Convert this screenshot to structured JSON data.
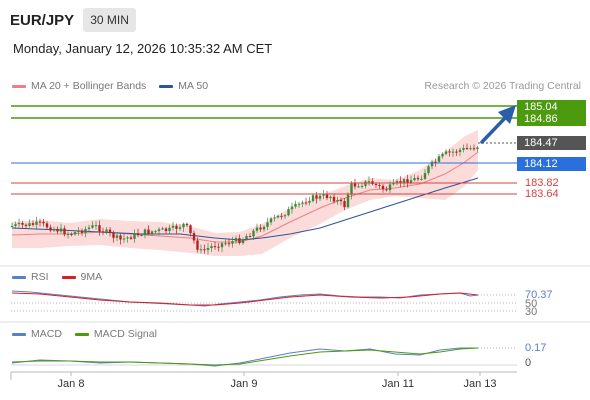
{
  "header": {
    "symbol": "EUR/JPY",
    "timeframe": "30 MIN",
    "datetime": "Monday, January 12, 2026 10:35:32 AM CET"
  },
  "legend": {
    "ma20": "MA 20 + Bollinger Bands",
    "ma50": "MA 50",
    "credit": "Research © 2026 Trading Central",
    "rsi": "RSI",
    "rsi_ma": "9MA",
    "macd": "MACD",
    "macd_signal": "MACD Signal"
  },
  "colors": {
    "ma20": "#f08080",
    "bollinger": "#fbd5d5",
    "ma50": "#2b5797",
    "target": "#4c9a0e",
    "current": "#555555",
    "pivot": "#2a6fdb",
    "support": "#d94040",
    "arrow": "#2b5ea8"
  },
  "price_levels": {
    "target1": "185.04",
    "target2": "184.86",
    "current": "184.47",
    "pivot": "184.12",
    "support1": "183.82",
    "support2": "183.64"
  },
  "rsi_panel": {
    "value": "70.37",
    "upper": "50",
    "lower": "30"
  },
  "macd_panel": {
    "value": "0.17",
    "zero": "0"
  },
  "xaxis": {
    "labels": [
      "Jan 8",
      "Jan 9",
      "Jan 11",
      "Jan 13"
    ]
  }
}
